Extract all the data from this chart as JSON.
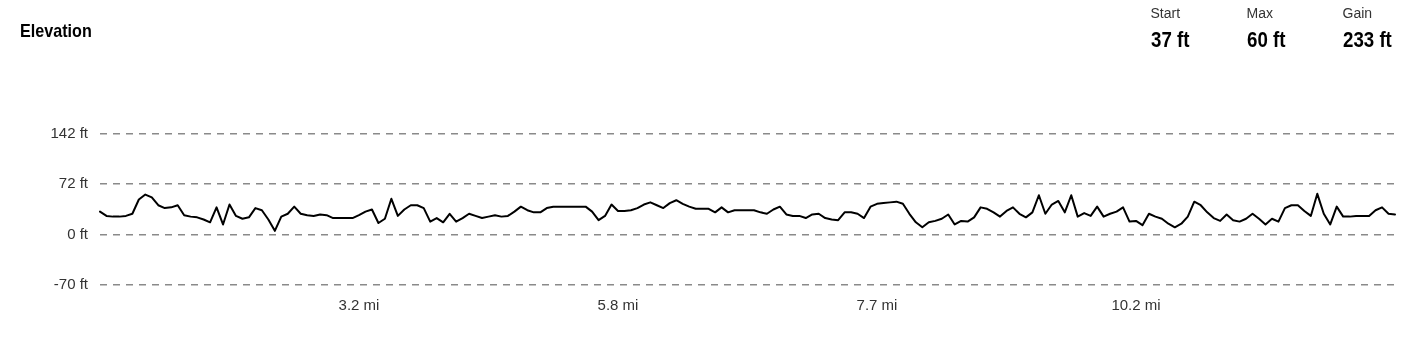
{
  "chart_data": {
    "type": "line",
    "title": "Elevation",
    "annotations": [
      "Start",
      "37 ft",
      "Max",
      "60 ft",
      "Gain",
      "233 ft"
    ],
    "categories": [
      null,
      null,
      null,
      null,
      null,
      null,
      null,
      null,
      null,
      null,
      null,
      null,
      null,
      null,
      null,
      null,
      null,
      null,
      null,
      null,
      null,
      null,
      null,
      null,
      null,
      null,
      null,
      null,
      null,
      null,
      null,
      null,
      null,
      null,
      null,
      null,
      null,
      null,
      null,
      null,
      "3.2 mi",
      null,
      null,
      null,
      null,
      null,
      null,
      null,
      null,
      null,
      null,
      null,
      null,
      null,
      null,
      null,
      null,
      null,
      null,
      null,
      null,
      null,
      null,
      null,
      null,
      null,
      null,
      null,
      null,
      null,
      null,
      null,
      null,
      null,
      null,
      null,
      null,
      null,
      null,
      null,
      "5.8 mi",
      null,
      null,
      null,
      null,
      null,
      null,
      null,
      null,
      null,
      null,
      null,
      null,
      null,
      null,
      null,
      null,
      null,
      null,
      null,
      null,
      null,
      null,
      null,
      null,
      null,
      null,
      null,
      null,
      null,
      null,
      null,
      null,
      null,
      null,
      null,
      null,
      null,
      null,
      null,
      "7.7 mi",
      null,
      null,
      null,
      null,
      null,
      null,
      null,
      null,
      null,
      null,
      null,
      null,
      null,
      null,
      null,
      null,
      null,
      null,
      null,
      null,
      null,
      null,
      null,
      null,
      null,
      null,
      null,
      null,
      null,
      null,
      null,
      null,
      null,
      null,
      null,
      null,
      null,
      null,
      null,
      "10.2 mi",
      null,
      null,
      null,
      null,
      null,
      null,
      null,
      null,
      null,
      null,
      null,
      null,
      null,
      null,
      null,
      null,
      null,
      null,
      null,
      null,
      null,
      null,
      null,
      null,
      null,
      null,
      null,
      null,
      null,
      null,
      null,
      null,
      null,
      null,
      null,
      null,
      null,
      null,
      null,
      null
    ],
    "series": [
      {
        "color": "#000000",
        "values": [
          33,
          27,
          26,
          26,
          27,
          30,
          50,
          57,
          53,
          42,
          38,
          39,
          42,
          28,
          26,
          25,
          22,
          18,
          39,
          15,
          43,
          27,
          23,
          25,
          38,
          35,
          22,
          6,
          26,
          30,
          40,
          30,
          28,
          27,
          29,
          28,
          24,
          24,
          24,
          24,
          28,
          33,
          36,
          17,
          23,
          51,
          27,
          36,
          42,
          42,
          38,
          19,
          24,
          18,
          30,
          19,
          24,
          30,
          27,
          24,
          26,
          28,
          26,
          27,
          33,
          40,
          35,
          32,
          32,
          38,
          40,
          40,
          40,
          40,
          40,
          40,
          33,
          21,
          27,
          43,
          34,
          34,
          35,
          38,
          43,
          46,
          42,
          38,
          45,
          49,
          44,
          40,
          37,
          37,
          37,
          32,
          39,
          32,
          35,
          35,
          35,
          35,
          32,
          30,
          36,
          40,
          29,
          27,
          27,
          24,
          29,
          30,
          24,
          22,
          21,
          32,
          32,
          30,
          24,
          40,
          44,
          45,
          46,
          47,
          44,
          30,
          18,
          11,
          18,
          20,
          23,
          29,
          15,
          20,
          19,
          25,
          39,
          37,
          32,
          26,
          34,
          39,
          30,
          25,
          32,
          56,
          30,
          43,
          48,
          32,
          56,
          26,
          31,
          27,
          40,
          26,
          30,
          33,
          39,
          19,
          20,
          14,
          30,
          26,
          23,
          16,
          11,
          16,
          26,
          47,
          42,
          32,
          24,
          20,
          29,
          21,
          19,
          23,
          30,
          23,
          15,
          23,
          19,
          38,
          42,
          42,
          34,
          27,
          58,
          30,
          15,
          40,
          26,
          26,
          27,
          27,
          27,
          35,
          39,
          30,
          29
        ]
      }
    ],
    "ylim": [
      -70,
      142
    ],
    "yticks": [
      {
        "value": -70,
        "label": "-70 ft"
      },
      {
        "value": 0,
        "label": "0 ft"
      },
      {
        "value": 72,
        "label": "72 ft"
      },
      {
        "value": 142,
        "label": "142 ft"
      }
    ],
    "grid": "y",
    "marker": "none"
  }
}
